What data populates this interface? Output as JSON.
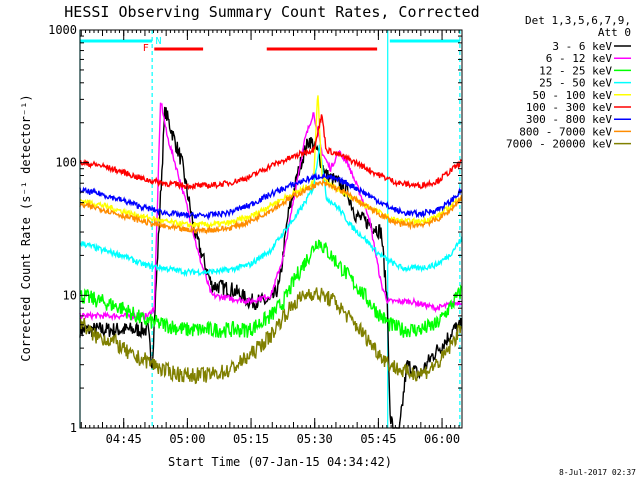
{
  "chart_data": {
    "type": "line",
    "title": "HESSI Observing Summary Count Rates, Corrected",
    "xlabel": "Start Time (07-Jan-15 04:34:42)",
    "ylabel": "Corrected Count Rate (s⁻¹ detector⁻¹)",
    "yscale": "log",
    "ylim": [
      1,
      1000
    ],
    "xlim_minutes": [
      0,
      90
    ],
    "y_ticks": [
      {
        "value": 1,
        "label": "1"
      },
      {
        "value": 10,
        "label": "10"
      },
      {
        "value": 100,
        "label": "100"
      },
      {
        "value": 1000,
        "label": "1000"
      }
    ],
    "x_ticks": [
      {
        "minutes": 10.3,
        "label": "04:45"
      },
      {
        "minutes": 25.3,
        "label": "05:00"
      },
      {
        "minutes": 40.3,
        "label": "05:15"
      },
      {
        "minutes": 55.3,
        "label": "05:30"
      },
      {
        "minutes": 70.3,
        "label": "05:45"
      },
      {
        "minutes": 85.3,
        "label": "06:00"
      }
    ],
    "legend_header": [
      "Det 1,3,5,6,7,9,",
      "Att 0"
    ],
    "legend_position": "right",
    "series": [
      {
        "name": "3 - 6 keV",
        "color": "#000000",
        "points": [
          [
            0,
            5.5
          ],
          [
            16,
            5.5
          ],
          [
            17,
            3
          ],
          [
            20,
            250
          ],
          [
            24,
            100
          ],
          [
            27,
            30
          ],
          [
            31,
            12
          ],
          [
            36,
            11
          ],
          [
            40,
            9
          ],
          [
            45,
            9
          ],
          [
            47,
            12
          ],
          [
            49,
            40
          ],
          [
            52,
            100
          ],
          [
            54,
            150
          ],
          [
            56,
            120
          ],
          [
            58,
            80
          ],
          [
            61,
            70
          ],
          [
            63,
            60
          ],
          [
            65,
            40
          ],
          [
            68,
            35
          ],
          [
            71,
            30
          ],
          [
            72.5,
            8
          ],
          [
            73,
            1.2
          ],
          [
            75,
            0.8
          ],
          [
            77,
            3
          ],
          [
            80,
            2.5
          ],
          [
            83,
            3.5
          ],
          [
            86,
            4.5
          ],
          [
            88,
            5.5
          ],
          [
            90,
            6
          ]
        ]
      },
      {
        "name": "6 - 12 keV",
        "color": "#ff00ff",
        "points": [
          [
            0,
            7
          ],
          [
            16,
            7
          ],
          [
            17.5,
            8
          ],
          [
            19,
            300
          ],
          [
            20.5,
            160
          ],
          [
            22,
            110
          ],
          [
            25,
            50
          ],
          [
            28,
            20
          ],
          [
            31,
            10
          ],
          [
            40,
            9
          ],
          [
            45,
            10
          ],
          [
            48,
            20
          ],
          [
            51,
            70
          ],
          [
            53,
            150
          ],
          [
            55,
            240
          ],
          [
            57,
            120
          ],
          [
            59,
            90
          ],
          [
            61,
            120
          ],
          [
            63,
            100
          ],
          [
            65,
            70
          ],
          [
            68,
            40
          ],
          [
            71,
            12
          ],
          [
            72.5,
            9
          ],
          [
            78,
            9
          ],
          [
            84,
            8
          ],
          [
            90,
            9
          ]
        ]
      },
      {
        "name": "12 - 25 keV",
        "color": "#00ff00",
        "points": [
          [
            0,
            10
          ],
          [
            5,
            9
          ],
          [
            10,
            8
          ],
          [
            15,
            6.5
          ],
          [
            20,
            6
          ],
          [
            25,
            5.5
          ],
          [
            30,
            5.5
          ],
          [
            35,
            5.5
          ],
          [
            40,
            5.5
          ],
          [
            45,
            7
          ],
          [
            48,
            9
          ],
          [
            51,
            14
          ],
          [
            54,
            20
          ],
          [
            56,
            26
          ],
          [
            58,
            22
          ],
          [
            61,
            17
          ],
          [
            64,
            13
          ],
          [
            67,
            10
          ],
          [
            70,
            7.5
          ],
          [
            73,
            6
          ],
          [
            76,
            5.5
          ],
          [
            80,
            5.5
          ],
          [
            84,
            6
          ],
          [
            87,
            8
          ],
          [
            90,
            11
          ]
        ]
      },
      {
        "name": "25 - 50 keV",
        "color": "#00ffff",
        "points": [
          [
            0,
            25
          ],
          [
            5,
            22
          ],
          [
            10,
            20
          ],
          [
            15,
            17
          ],
          [
            20,
            16
          ],
          [
            25,
            15
          ],
          [
            30,
            15
          ],
          [
            35,
            15.5
          ],
          [
            40,
            17
          ],
          [
            45,
            22
          ],
          [
            48,
            30
          ],
          [
            51,
            40
          ],
          [
            53,
            50
          ],
          [
            55,
            65
          ],
          [
            56.5,
            140
          ],
          [
            58,
            55
          ],
          [
            61,
            45
          ],
          [
            64,
            33
          ],
          [
            67,
            27
          ],
          [
            70,
            21
          ],
          [
            73,
            18
          ],
          [
            76,
            16
          ],
          [
            80,
            16
          ],
          [
            84,
            17
          ],
          [
            87,
            20
          ],
          [
            90,
            27
          ]
        ]
      },
      {
        "name": "50 - 100 keV",
        "color": "#ffff00",
        "points": [
          [
            0,
            52
          ],
          [
            5,
            48
          ],
          [
            10,
            43
          ],
          [
            15,
            39
          ],
          [
            20,
            36
          ],
          [
            25,
            34
          ],
          [
            30,
            34
          ],
          [
            35,
            35
          ],
          [
            40,
            39
          ],
          [
            45,
            48
          ],
          [
            50,
            58
          ],
          [
            53,
            64
          ],
          [
            55,
            70
          ],
          [
            56,
            350
          ],
          [
            57,
            80
          ],
          [
            60,
            65
          ],
          [
            63,
            58
          ],
          [
            66,
            50
          ],
          [
            70,
            43
          ],
          [
            73,
            38
          ],
          [
            76,
            36
          ],
          [
            80,
            36
          ],
          [
            84,
            39
          ],
          [
            87,
            46
          ],
          [
            90,
            57
          ]
        ]
      },
      {
        "name": "100 - 300 keV",
        "color": "#ff0000",
        "points": [
          [
            0,
            100
          ],
          [
            5,
            95
          ],
          [
            10,
            85
          ],
          [
            15,
            75
          ],
          [
            20,
            70
          ],
          [
            25,
            67
          ],
          [
            30,
            67
          ],
          [
            35,
            70
          ],
          [
            40,
            78
          ],
          [
            45,
            95
          ],
          [
            50,
            110
          ],
          [
            53,
            120
          ],
          [
            55,
            125
          ],
          [
            57,
            230
          ],
          [
            58,
            125
          ],
          [
            61,
            115
          ],
          [
            65,
            100
          ],
          [
            70,
            82
          ],
          [
            75,
            70
          ],
          [
            80,
            67
          ],
          [
            84,
            72
          ],
          [
            87,
            85
          ],
          [
            90,
            102
          ]
        ]
      },
      {
        "name": "300 - 800 keV",
        "color": "#0000ff",
        "points": [
          [
            0,
            62
          ],
          [
            5,
            58
          ],
          [
            10,
            52
          ],
          [
            15,
            46
          ],
          [
            20,
            42
          ],
          [
            25,
            40
          ],
          [
            30,
            40
          ],
          [
            35,
            42
          ],
          [
            40,
            48
          ],
          [
            45,
            58
          ],
          [
            50,
            68
          ],
          [
            53,
            74
          ],
          [
            55,
            77
          ],
          [
            57,
            80
          ],
          [
            60,
            75
          ],
          [
            63,
            70
          ],
          [
            66,
            62
          ],
          [
            70,
            52
          ],
          [
            73,
            46
          ],
          [
            76,
            42
          ],
          [
            80,
            41
          ],
          [
            84,
            44
          ],
          [
            87,
            50
          ],
          [
            90,
            62
          ]
        ]
      },
      {
        "name": "800 - 7000 keV",
        "color": "#ff8c00",
        "points": [
          [
            0,
            48
          ],
          [
            5,
            45
          ],
          [
            10,
            40
          ],
          [
            15,
            36
          ],
          [
            20,
            33
          ],
          [
            25,
            31
          ],
          [
            30,
            31
          ],
          [
            35,
            32
          ],
          [
            40,
            36
          ],
          [
            45,
            44
          ],
          [
            50,
            55
          ],
          [
            53,
            62
          ],
          [
            55,
            67
          ],
          [
            57,
            70
          ],
          [
            60,
            65
          ],
          [
            63,
            58
          ],
          [
            66,
            50
          ],
          [
            70,
            42
          ],
          [
            73,
            37
          ],
          [
            76,
            34
          ],
          [
            80,
            34
          ],
          [
            84,
            37
          ],
          [
            87,
            43
          ],
          [
            90,
            55
          ]
        ]
      },
      {
        "name": "7000 - 20000 keV",
        "color": "#808000",
        "points": [
          [
            0,
            6.5
          ],
          [
            3,
            5
          ],
          [
            8,
            4.5
          ],
          [
            12,
            3.5
          ],
          [
            16,
            3.2
          ],
          [
            20,
            2.7
          ],
          [
            25,
            2.5
          ],
          [
            30,
            2.5
          ],
          [
            35,
            2.7
          ],
          [
            40,
            3.5
          ],
          [
            45,
            5
          ],
          [
            48,
            7
          ],
          [
            51,
            9
          ],
          [
            54,
            10.5
          ],
          [
            57,
            10
          ],
          [
            60,
            9
          ],
          [
            63,
            7
          ],
          [
            66,
            5.5
          ],
          [
            70,
            3.8
          ],
          [
            73,
            3
          ],
          [
            77,
            2.6
          ],
          [
            81,
            2.6
          ],
          [
            85,
            3.2
          ],
          [
            88,
            4.5
          ],
          [
            90,
            6
          ]
        ]
      }
    ],
    "vertical_lines": [
      {
        "minutes": 0,
        "style": "solid",
        "color": "#00ffff"
      },
      {
        "minutes": 17,
        "style": "dashed",
        "color": "#00ffff"
      },
      {
        "minutes": 72.5,
        "style": "solid",
        "color": "#00ffff"
      },
      {
        "minutes": 89.5,
        "style": "dashed",
        "color": "#00ffff"
      }
    ],
    "night_bars": [
      {
        "start_minutes": 0,
        "end_minutes": 17,
        "color": "#00ffff"
      },
      {
        "start_minutes": 73,
        "end_minutes": 89.5,
        "color": "#00ffff"
      }
    ],
    "flare_bars": [
      {
        "start_minutes": 17.5,
        "end_minutes": 29,
        "color": "#ff0000"
      },
      {
        "start_minutes": 44,
        "end_minutes": 70,
        "color": "#ff0000"
      }
    ],
    "flag_labels": [
      {
        "text": "F",
        "minutes": 15.5,
        "color": "#ff0000"
      },
      {
        "text": "N",
        "minutes": 18.5,
        "color": "#00ffff"
      }
    ],
    "footer_date": "8-Jul-2017 02:37"
  }
}
